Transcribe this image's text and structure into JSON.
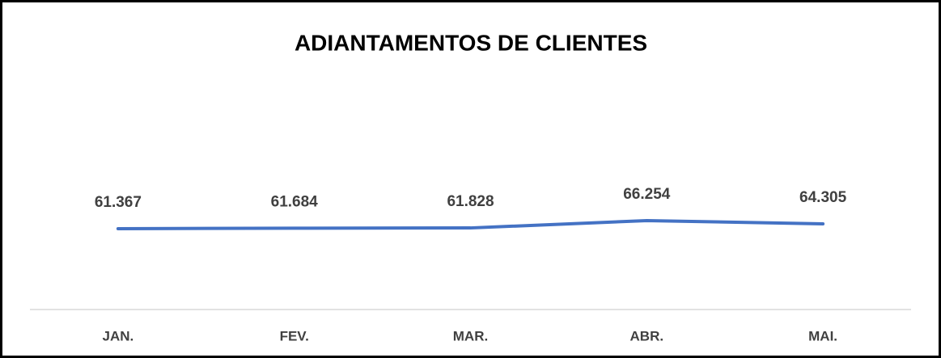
{
  "chart_data": {
    "type": "line",
    "title": "ADIANTAMENTOS DE CLIENTES",
    "categories": [
      "JAN.",
      "FEV.",
      "MAR.",
      "ABR.",
      "MAI."
    ],
    "values": [
      61367,
      61684,
      61828,
      66254,
      64305
    ],
    "value_labels": [
      "61.367",
      "61.684",
      "61.828",
      "66.254",
      "64.305"
    ],
    "color": "#4472c4",
    "ylim": [
      12500,
      150800
    ]
  }
}
